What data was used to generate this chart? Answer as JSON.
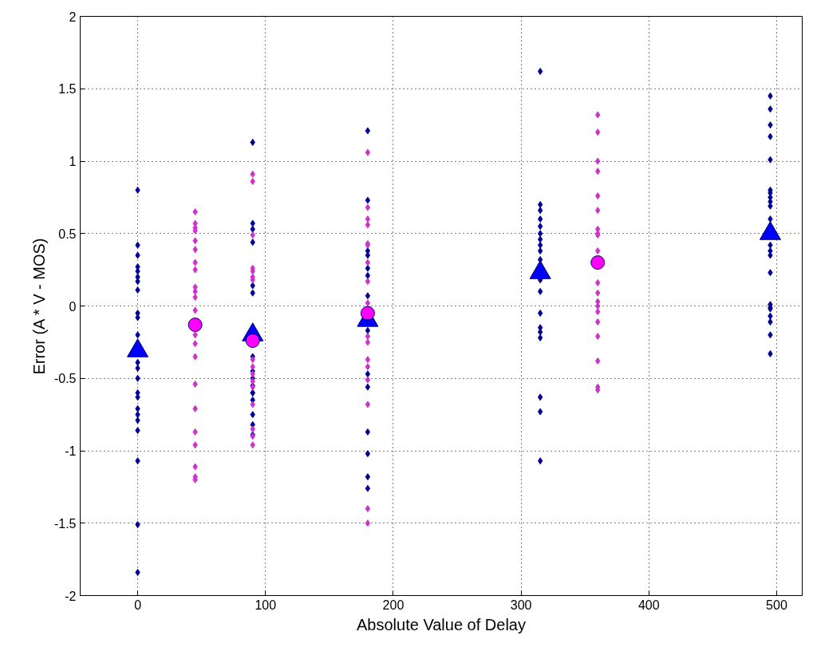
{
  "chart_data": {
    "type": "scatter",
    "xlabel": "Absolute Value of Delay",
    "ylabel": "Error (A * V - MOS)",
    "xlim": [
      -45,
      520
    ],
    "xticks": [
      0,
      100,
      200,
      300,
      400,
      500
    ],
    "ylim": [
      -2,
      2
    ],
    "yticks": [
      -2,
      -1.5,
      -1,
      -0.5,
      0,
      0.5,
      1,
      1.5,
      2
    ],
    "grid": true,
    "series": [
      {
        "color": "#000099",
        "marker": "diamond",
        "x": [
          0,
          0,
          0,
          0,
          0,
          0,
          0,
          0,
          0,
          0,
          0,
          0,
          0,
          0,
          0,
          0,
          0,
          0,
          0,
          0,
          0,
          0,
          0,
          90,
          90,
          90,
          90,
          90,
          90,
          90,
          90,
          90,
          90,
          90,
          90,
          90,
          90,
          90,
          90,
          180,
          180,
          180,
          180,
          180,
          180,
          180,
          180,
          180,
          180,
          180,
          180,
          180,
          180,
          315,
          315,
          315,
          315,
          315,
          315,
          315,
          315,
          315,
          315,
          315,
          315,
          315,
          315,
          315,
          315,
          315,
          315,
          315,
          495,
          495,
          495,
          495,
          495,
          495,
          495,
          495,
          495,
          495,
          495,
          495,
          495,
          495,
          495,
          495,
          495,
          495,
          495,
          495,
          495,
          495
        ],
        "values": [
          0.8,
          0.42,
          0.35,
          0.27,
          0.24,
          0.2,
          0.17,
          0.11,
          -0.05,
          -0.08,
          -0.2,
          -0.39,
          -0.43,
          -0.5,
          -0.6,
          -0.63,
          -0.71,
          -0.75,
          -0.79,
          -0.86,
          -1.07,
          -1.51,
          -1.84,
          1.13,
          0.57,
          0.53,
          0.44,
          0.14,
          0.09,
          -0.35,
          -0.45,
          -0.5,
          -0.55,
          -0.6,
          -0.6,
          -0.65,
          -0.75,
          -0.82,
          -0.89,
          1.21,
          0.73,
          0.38,
          0.35,
          0.26,
          0.21,
          0.07,
          -0.17,
          -0.47,
          -0.56,
          -0.87,
          -1.02,
          -1.18,
          -1.26,
          1.62,
          0.7,
          0.66,
          0.6,
          0.55,
          0.5,
          0.46,
          0.42,
          0.38,
          0.32,
          0.18,
          0.1,
          -0.05,
          -0.15,
          -0.18,
          -0.22,
          -0.63,
          -0.73,
          -1.07,
          1.45,
          1.36,
          1.25,
          1.17,
          1.01,
          0.8,
          0.78,
          0.75,
          0.72,
          0.69,
          0.6,
          0.42,
          0.38,
          0.35,
          0.23,
          0.01,
          -0.01,
          -0.02,
          -0.07,
          -0.11,
          -0.2,
          -0.33
        ]
      },
      {
        "color": "#cc33cc",
        "marker": "diamond",
        "x": [
          45,
          45,
          45,
          45,
          45,
          45,
          45,
          45,
          45,
          45,
          45,
          45,
          45,
          45,
          45,
          45,
          45,
          45,
          45,
          45,
          45,
          45,
          90,
          90,
          90,
          90,
          90,
          90,
          90,
          90,
          90,
          90,
          90,
          90,
          90,
          90,
          90,
          90,
          180,
          180,
          180,
          180,
          180,
          180,
          180,
          180,
          180,
          180,
          180,
          180,
          180,
          180,
          180,
          180,
          180,
          360,
          360,
          360,
          360,
          360,
          360,
          360,
          360,
          360,
          360,
          360,
          360,
          360,
          360,
          360,
          360,
          360,
          360,
          360,
          360
        ],
        "values": [
          0.65,
          0.57,
          0.54,
          0.52,
          0.45,
          0.39,
          0.3,
          0.25,
          0.13,
          0.1,
          0.06,
          -0.03,
          -0.2,
          -0.26,
          -0.35,
          -0.54,
          -0.71,
          -0.87,
          -0.96,
          -1.11,
          -1.18,
          -1.2,
          0.91,
          0.86,
          0.49,
          0.26,
          0.24,
          0.2,
          0.18,
          -0.37,
          -0.42,
          -0.47,
          -0.52,
          -0.56,
          -0.68,
          -0.85,
          -0.9,
          -0.96,
          1.06,
          0.68,
          0.6,
          0.56,
          0.43,
          0.42,
          0.3,
          0.17,
          0.02,
          -0.21,
          -0.25,
          -0.37,
          -0.42,
          -0.51,
          -0.68,
          -1.4,
          -1.5,
          1.32,
          1.2,
          1.0,
          0.93,
          0.76,
          0.66,
          0.53,
          0.5,
          0.49,
          0.38,
          0.16,
          0.09,
          0.03,
          0,
          -0.04,
          -0.11,
          -0.21,
          -0.38,
          -0.56,
          -0.58
        ]
      },
      {
        "color": "#0000ff",
        "marker": "triangle",
        "x": [
          0,
          90,
          180,
          315,
          495
        ],
        "values": [
          -0.31,
          -0.2,
          -0.1,
          0.23,
          0.5
        ]
      },
      {
        "color": "#ff00ff",
        "marker": "circle",
        "x": [
          45,
          90,
          180,
          360
        ],
        "values": [
          -0.13,
          -0.24,
          -0.05,
          0.3
        ]
      }
    ]
  }
}
